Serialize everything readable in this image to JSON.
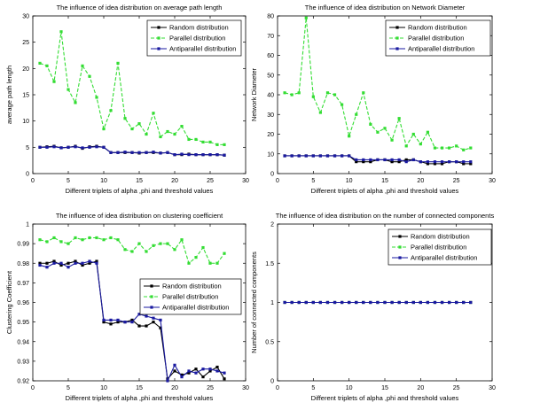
{
  "chart_data": [
    {
      "type": "line",
      "title": "The influence of idea distribution on average path length",
      "xlabel": "Different triplets of alpha ,phi and threshold values",
      "ylabel": "average path length",
      "xlim": [
        0,
        30
      ],
      "ylim": [
        0,
        30
      ],
      "xticks": [
        0,
        5,
        10,
        15,
        20,
        25,
        30
      ],
      "yticks": [
        0,
        5,
        10,
        15,
        20,
        25,
        30
      ],
      "legend_position": "top-right",
      "series": [
        {
          "name": "Random distribution",
          "color": "#000000",
          "style": "solid",
          "values": [
            5.0,
            5.1,
            5.2,
            4.9,
            5.0,
            5.2,
            4.8,
            5.1,
            5.2,
            5.0,
            4.0,
            4.0,
            4.0,
            4.0,
            3.9,
            4.0,
            4.0,
            3.9,
            4.0,
            3.6,
            3.6,
            3.7,
            3.6,
            3.6,
            3.6,
            3.6,
            3.5
          ]
        },
        {
          "name": "Parallel distribution",
          "color": "#33dd33",
          "style": "dashed",
          "values": [
            21.0,
            20.5,
            17.5,
            27.0,
            16.0,
            13.5,
            20.5,
            18.5,
            14.5,
            8.5,
            12.0,
            21.0,
            10.5,
            8.5,
            9.5,
            7.5,
            11.5,
            7.0,
            8.0,
            7.5,
            9.0,
            6.5,
            6.5,
            6.0,
            6.0,
            5.5,
            5.5
          ]
        },
        {
          "name": "Antiparallel distribution",
          "color": "#1a1aa0",
          "style": "solid",
          "values": [
            5.0,
            5.0,
            5.1,
            4.9,
            5.0,
            5.1,
            4.9,
            5.0,
            5.1,
            5.0,
            4.0,
            4.0,
            4.1,
            4.0,
            4.0,
            4.0,
            4.1,
            3.9,
            4.0,
            3.6,
            3.7,
            3.6,
            3.6,
            3.6,
            3.6,
            3.6,
            3.5
          ]
        }
      ]
    },
    {
      "type": "line",
      "title": "The influence of idea distribution on Network Diameter",
      "xlabel": "Different triplets of alpha ,phi and threshold values",
      "ylabel": "Network Diameter",
      "xlim": [
        0,
        30
      ],
      "ylim": [
        0,
        80
      ],
      "xticks": [
        0,
        5,
        10,
        15,
        20,
        25,
        30
      ],
      "yticks": [
        0,
        10,
        20,
        30,
        40,
        50,
        60,
        70,
        80
      ],
      "legend_position": "top-right",
      "series": [
        {
          "name": "Random distribution",
          "color": "#000000",
          "style": "solid",
          "values": [
            9,
            9,
            9,
            9,
            9,
            9,
            9,
            9,
            9,
            9,
            6,
            6,
            6,
            7,
            7,
            6,
            6,
            7,
            7,
            6,
            5,
            5,
            5,
            6,
            6,
            5,
            5
          ]
        },
        {
          "name": "Parallel distribution",
          "color": "#33dd33",
          "style": "dashed",
          "values": [
            41,
            40,
            41,
            79,
            39,
            31,
            41,
            40,
            35,
            19,
            30,
            41,
            25,
            21,
            23,
            17,
            28,
            14,
            20,
            15,
            21,
            13,
            13,
            13,
            14,
            12,
            13
          ]
        },
        {
          "name": "Antiparallel distribution",
          "color": "#1a1aa0",
          "style": "solid",
          "values": [
            9,
            9,
            9,
            9,
            9,
            9,
            9,
            9,
            9,
            9,
            7,
            7,
            7,
            7,
            7,
            7,
            7,
            6,
            7,
            6,
            6,
            6,
            6,
            6,
            6,
            6,
            6
          ]
        }
      ]
    },
    {
      "type": "line",
      "title": "The influence of idea distribution on clustering coefficient",
      "xlabel": "Different triplets of alpha ,phi and threshold values",
      "ylabel": "Clustering Coefficient",
      "xlim": [
        0,
        30
      ],
      "ylim": [
        0.92,
        1.0
      ],
      "xticks": [
        0,
        5,
        10,
        15,
        20,
        25,
        30
      ],
      "yticks": [
        0.92,
        0.93,
        0.94,
        0.95,
        0.96,
        0.97,
        0.98,
        0.99,
        1.0
      ],
      "ytick_labels": [
        "0.92",
        "0.93",
        "0.94",
        "0.95",
        "0.96",
        "0.97",
        "0.98",
        "0.99",
        "1"
      ],
      "legend_position": "center-right",
      "series": [
        {
          "name": "Random distribution",
          "color": "#000000",
          "style": "solid",
          "values": [
            0.98,
            0.98,
            0.981,
            0.979,
            0.98,
            0.981,
            0.979,
            0.98,
            0.981,
            0.95,
            0.949,
            0.95,
            0.95,
            0.951,
            0.948,
            0.948,
            0.95,
            0.947,
            0.921,
            0.925,
            0.923,
            0.924,
            0.926,
            0.922,
            0.925,
            0.927,
            0.921
          ]
        },
        {
          "name": "Parallel distribution",
          "color": "#33dd33",
          "style": "dashed",
          "values": [
            0.992,
            0.991,
            0.993,
            0.991,
            0.99,
            0.993,
            0.992,
            0.993,
            0.993,
            0.992,
            0.993,
            0.992,
            0.987,
            0.986,
            0.99,
            0.986,
            0.989,
            0.99,
            0.99,
            0.987,
            0.992,
            0.98,
            0.983,
            0.988,
            0.98,
            0.98,
            0.985
          ]
        },
        {
          "name": "Antiparallel distribution",
          "color": "#1a1aa0",
          "style": "solid",
          "values": [
            0.979,
            0.978,
            0.98,
            0.98,
            0.978,
            0.98,
            0.98,
            0.981,
            0.98,
            0.951,
            0.951,
            0.951,
            0.95,
            0.95,
            0.954,
            0.953,
            0.952,
            0.951,
            0.92,
            0.928,
            0.922,
            0.925,
            0.924,
            0.926,
            0.926,
            0.925,
            0.924
          ]
        }
      ]
    },
    {
      "type": "line",
      "title": "The influence of idea distribution on the number of connected components",
      "xlabel": "Different triplets of alpha ,phi and threshold values",
      "ylabel": "Number of connected components",
      "xlim": [
        0,
        30
      ],
      "ylim": [
        0,
        2
      ],
      "xticks": [
        0,
        5,
        10,
        15,
        20,
        25,
        30
      ],
      "yticks": [
        0,
        0.5,
        1,
        1.5,
        2
      ],
      "legend_position": "top-right",
      "series": [
        {
          "name": "Random distribution",
          "color": "#000000",
          "style": "solid",
          "values": [
            1,
            1,
            1,
            1,
            1,
            1,
            1,
            1,
            1,
            1,
            1,
            1,
            1,
            1,
            1,
            1,
            1,
            1,
            1,
            1,
            1,
            1,
            1,
            1,
            1,
            1,
            1
          ]
        },
        {
          "name": "Parallel distribution",
          "color": "#33dd33",
          "style": "dashed",
          "values": [
            1,
            1,
            1,
            1,
            1,
            1,
            1,
            1,
            1,
            1,
            1,
            1,
            1,
            1,
            1,
            1,
            1,
            1,
            1,
            1,
            1,
            1,
            1,
            1,
            1,
            1,
            1
          ]
        },
        {
          "name": "Antiparallel distribution",
          "color": "#1a1aa0",
          "style": "solid",
          "values": [
            1,
            1,
            1,
            1,
            1,
            1,
            1,
            1,
            1,
            1,
            1,
            1,
            1,
            1,
            1,
            1,
            1,
            1,
            1,
            1,
            1,
            1,
            1,
            1,
            1,
            1,
            1
          ]
        }
      ]
    }
  ]
}
